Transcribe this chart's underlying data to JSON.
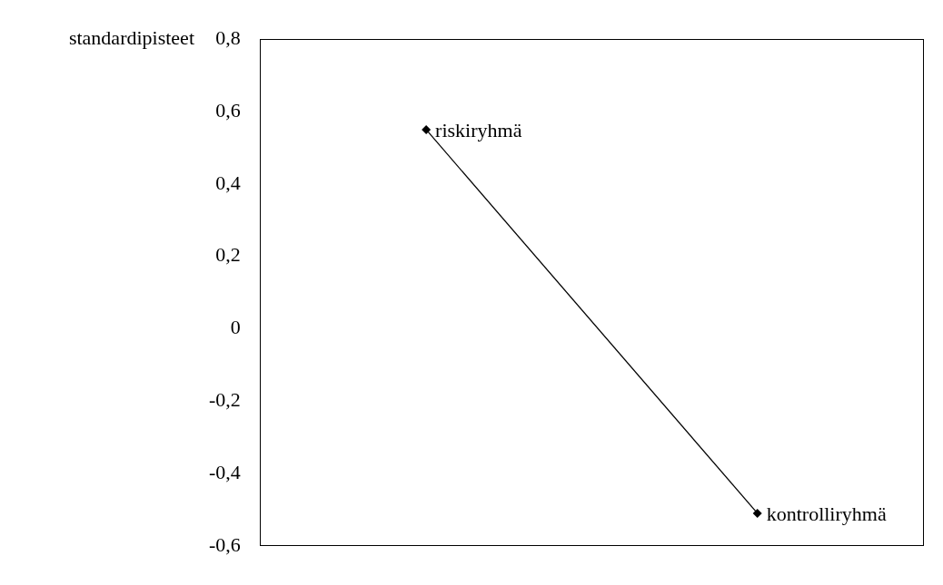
{
  "chart_data": {
    "type": "line",
    "ylabel": "standardipisteet",
    "categories": [
      null,
      null
    ],
    "annotations": [
      "riskiryhmä",
      "kontrolliryhmä"
    ],
    "series": [
      {
        "color": "#000000",
        "values": [
          0.55,
          -0.51
        ]
      }
    ],
    "ylim": [
      -0.6,
      0.8
    ],
    "yticks": [
      {
        "value": -0.6,
        "label": "-0,6"
      },
      {
        "value": -0.4,
        "label": "-0,4"
      },
      {
        "value": -0.2,
        "label": "-0,2"
      },
      {
        "value": 0,
        "label": "0"
      },
      {
        "value": 0.2,
        "label": "0,2"
      },
      {
        "value": 0.4,
        "label": "0,4"
      },
      {
        "value": 0.6,
        "label": "0,6"
      },
      {
        "value": 0.8,
        "label": "0,8"
      }
    ],
    "tick_labels": "y",
    "grid": false,
    "legend": false,
    "marker": "diamond",
    "line_style": "solid"
  }
}
